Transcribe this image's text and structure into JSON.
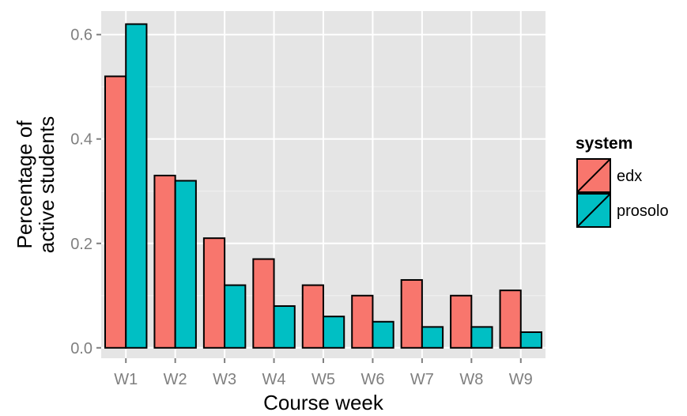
{
  "chart_data": {
    "type": "bar",
    "xlabel": "Course week",
    "ylabel": "Percentage of\nactive students",
    "categories": [
      "W1",
      "W2",
      "W3",
      "W4",
      "W5",
      "W6",
      "W7",
      "W8",
      "W9"
    ],
    "series": [
      {
        "name": "edx",
        "color": "#F8766D",
        "values": [
          0.52,
          0.33,
          0.21,
          0.17,
          0.12,
          0.1,
          0.13,
          0.1,
          0.11
        ]
      },
      {
        "name": "prosolo",
        "color": "#00BFC4",
        "values": [
          0.62,
          0.32,
          0.12,
          0.08,
          0.06,
          0.05,
          0.04,
          0.04,
          0.03
        ]
      }
    ],
    "yticks": [
      "0.0",
      "0.2",
      "0.4",
      "0.6"
    ],
    "ylim": [
      -0.02,
      0.645
    ],
    "grid": true,
    "panel_background": "#E5E5E5",
    "legend": {
      "title": "system",
      "placement": "right"
    }
  }
}
